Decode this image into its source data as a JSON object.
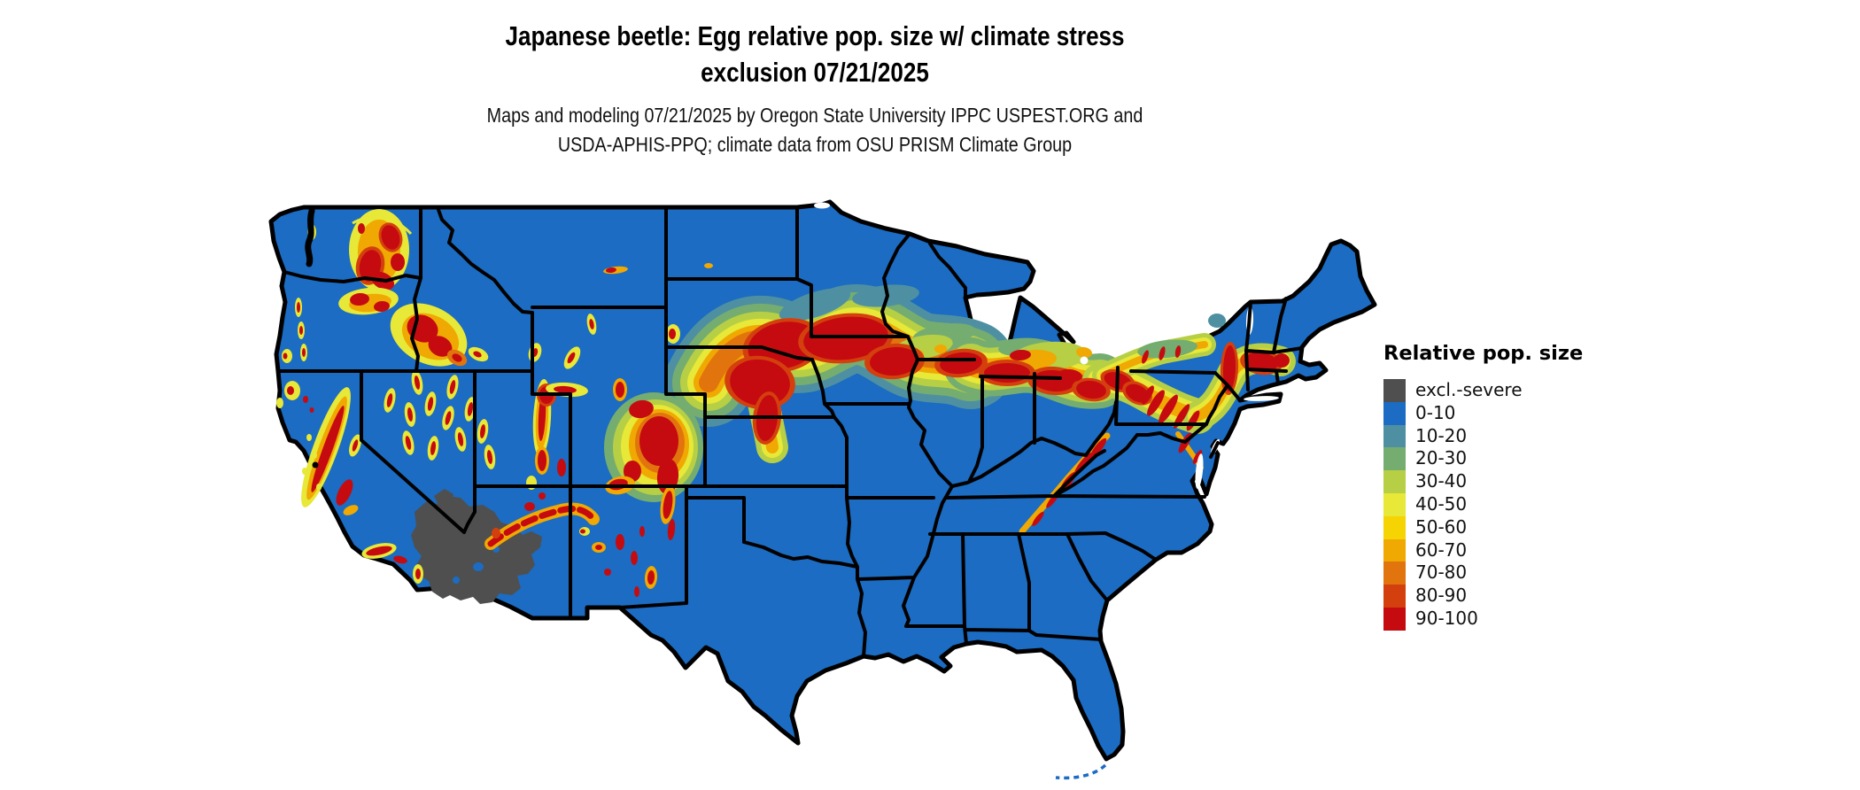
{
  "header": {
    "title_line1": "Japanese beetle: Egg relative pop. size w/ climate stress",
    "title_line2": "exclusion 07/21/2025",
    "credit_line1": "Maps and modeling 07/21/2025 by Oregon State University IPPC USPEST.ORG and",
    "credit_line2": "USDA-APHIS-PPQ; climate data from OSU PRISM Climate Group"
  },
  "legend": {
    "title": "Relative pop. size",
    "entries": [
      {
        "label": "excl.-severe",
        "key": "excl",
        "color": "#4f4f4f"
      },
      {
        "label": "0-10",
        "key": "c0",
        "color": "#1b6cc2"
      },
      {
        "label": "10-20",
        "key": "c10",
        "color": "#4e90a2"
      },
      {
        "label": "20-30",
        "key": "c20",
        "color": "#75ad70"
      },
      {
        "label": "30-40",
        "key": "c30",
        "color": "#b7cf45"
      },
      {
        "label": "40-50",
        "key": "c40",
        "color": "#e7e837"
      },
      {
        "label": "50-60",
        "key": "c50",
        "color": "#f6d303"
      },
      {
        "label": "60-70",
        "key": "c60",
        "color": "#f0a802"
      },
      {
        "label": "70-80",
        "key": "c70",
        "color": "#e2740e"
      },
      {
        "label": "80-90",
        "key": "c80",
        "color": "#d4400d"
      },
      {
        "label": "90-100",
        "key": "c90",
        "color": "#c50b10"
      }
    ]
  },
  "map": {
    "region": "Contiguous United States",
    "base_value_class": "0-10",
    "state_border_color": "#000000",
    "water_color": "#ffffff",
    "excluded_area": "excl.-severe zone over southwestern Arizona / lower Colorado River desert",
    "high_value_regions": [
      "Washington Cascades",
      "Blue Mountains (NE Oregon)",
      "Central Idaho Rockies",
      "Sierra Nevada",
      "Great Basin ranges (Nevada)",
      "Wasatch and Uinta ranges (Utah)",
      "Colorado Rockies and Front Range",
      "Mogollon Rim (Arizona) and New Mexico ranges",
      "Corn Belt band: SE South Dakota - E Nebraska - S Minnesota - Iowa - N Illinois",
      "N Indiana - N Ohio - S Michigan",
      "Lake Erie belt, NW Pennsylvania ridges, W New York",
      "Hudson Valley and S New England",
      "Central Appalachians (WV / VA / MD)"
    ]
  }
}
